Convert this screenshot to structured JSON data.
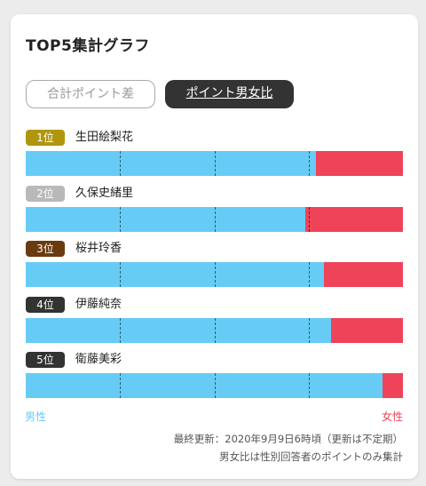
{
  "colors": {
    "male": "#66ccf5",
    "female": "#ee4359",
    "card_bg": "#ffffff",
    "page_bg": "#ececec",
    "active_tab": "#333333"
  },
  "header": {
    "title": "TOP5集計グラフ"
  },
  "tabs": [
    {
      "label": "合計ポイント差",
      "active": false
    },
    {
      "label": "ポイント男女比",
      "active": true
    }
  ],
  "chart_data": {
    "type": "bar",
    "orientation": "horizontal-stacked-100",
    "categories": [
      "生田絵梨花",
      "久保史緒里",
      "桜井玲香",
      "伊藤純奈",
      "衛藤美彩"
    ],
    "ranks": [
      "1位",
      "2位",
      "3位",
      "4位",
      "5位"
    ],
    "rank_colors": [
      "#b0960f",
      "#b9b9b9",
      "#6b3b10",
      "#333333",
      "#333333"
    ],
    "series": [
      {
        "name": "男性",
        "values": [
          0.77,
          0.74,
          0.79,
          0.81,
          0.945
        ]
      },
      {
        "name": "女性",
        "values": [
          0.23,
          0.26,
          0.21,
          0.19,
          0.055
        ]
      }
    ],
    "gridlines": [
      0.25,
      0.5,
      0.75
    ],
    "xlim": [
      0,
      1
    ],
    "legend": "bottom"
  },
  "legend": {
    "male_label": "男性",
    "female_label": "女性"
  },
  "footer": {
    "updated": "最終更新：2020年9月9日6時頃（更新は不定期）",
    "note": "男女比は性別回答者のポイントのみ集計"
  }
}
